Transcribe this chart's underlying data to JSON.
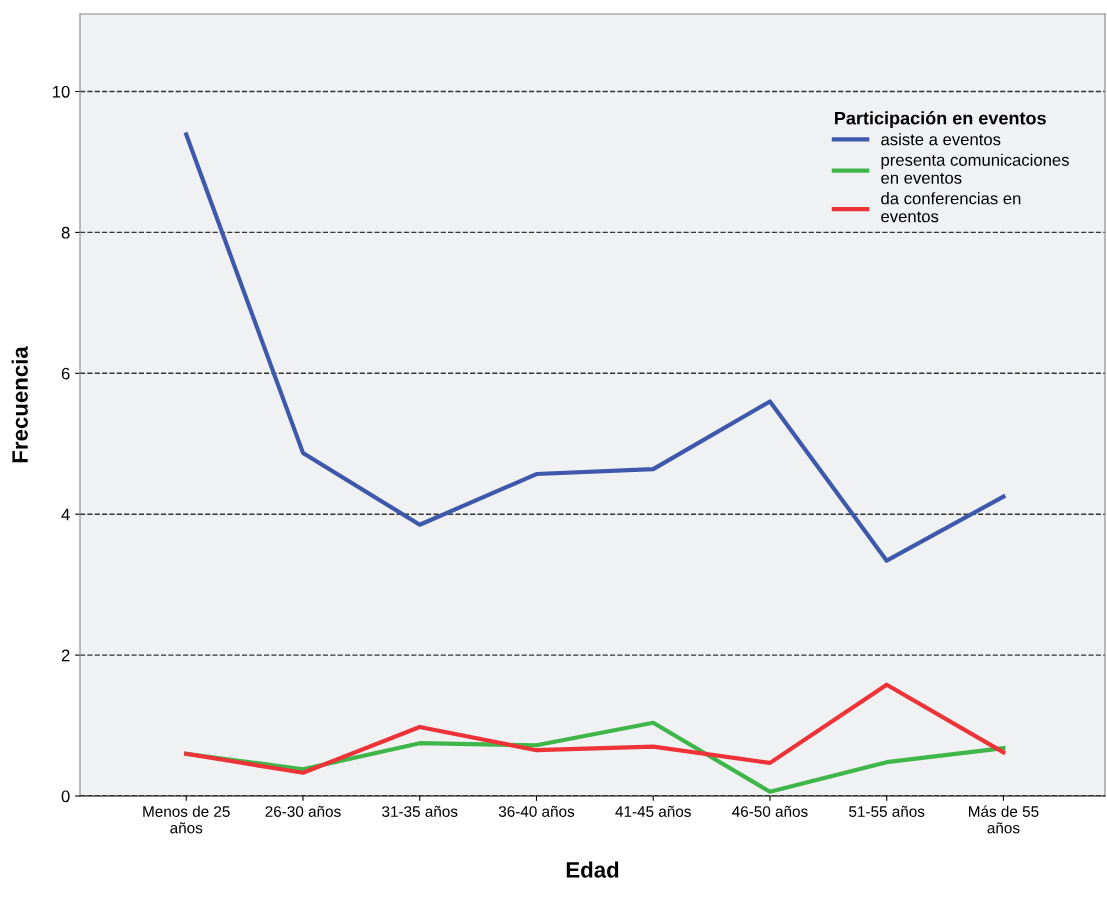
{
  "chart_data": {
    "type": "line",
    "xlabel": "Edad",
    "ylabel": "Frecuencia",
    "legend_title": "Participación en eventos",
    "legend": "top right",
    "grid": "y",
    "line_style": "solid",
    "marker": "none",
    "categories": [
      "Menos de 25\naños",
      "26-30 años",
      "31-35 años",
      "36-40 años",
      "41-45 años",
      "46-50 años",
      "51-55 años",
      "Más de 55\naños"
    ],
    "ylim": [
      0,
      11.1
    ],
    "yticks": [
      0,
      2,
      4,
      6,
      8,
      10
    ],
    "series": [
      {
        "name": "asiste a eventos",
        "color": "#3e58ac",
        "values": [
          9.39,
          4.87,
          3.85,
          4.57,
          4.64,
          5.6,
          3.34,
          4.25
        ]
      },
      {
        "name": "presenta comunicaciones\nen eventos",
        "color": "#3fb649",
        "values": [
          0.6,
          0.38,
          0.75,
          0.72,
          1.04,
          0.06,
          0.48,
          0.68
        ]
      },
      {
        "name": "da conferencias en\neventos",
        "color": "#ee3338",
        "values": [
          0.6,
          0.33,
          0.98,
          0.65,
          0.7,
          0.47,
          1.58,
          0.62
        ]
      }
    ]
  }
}
